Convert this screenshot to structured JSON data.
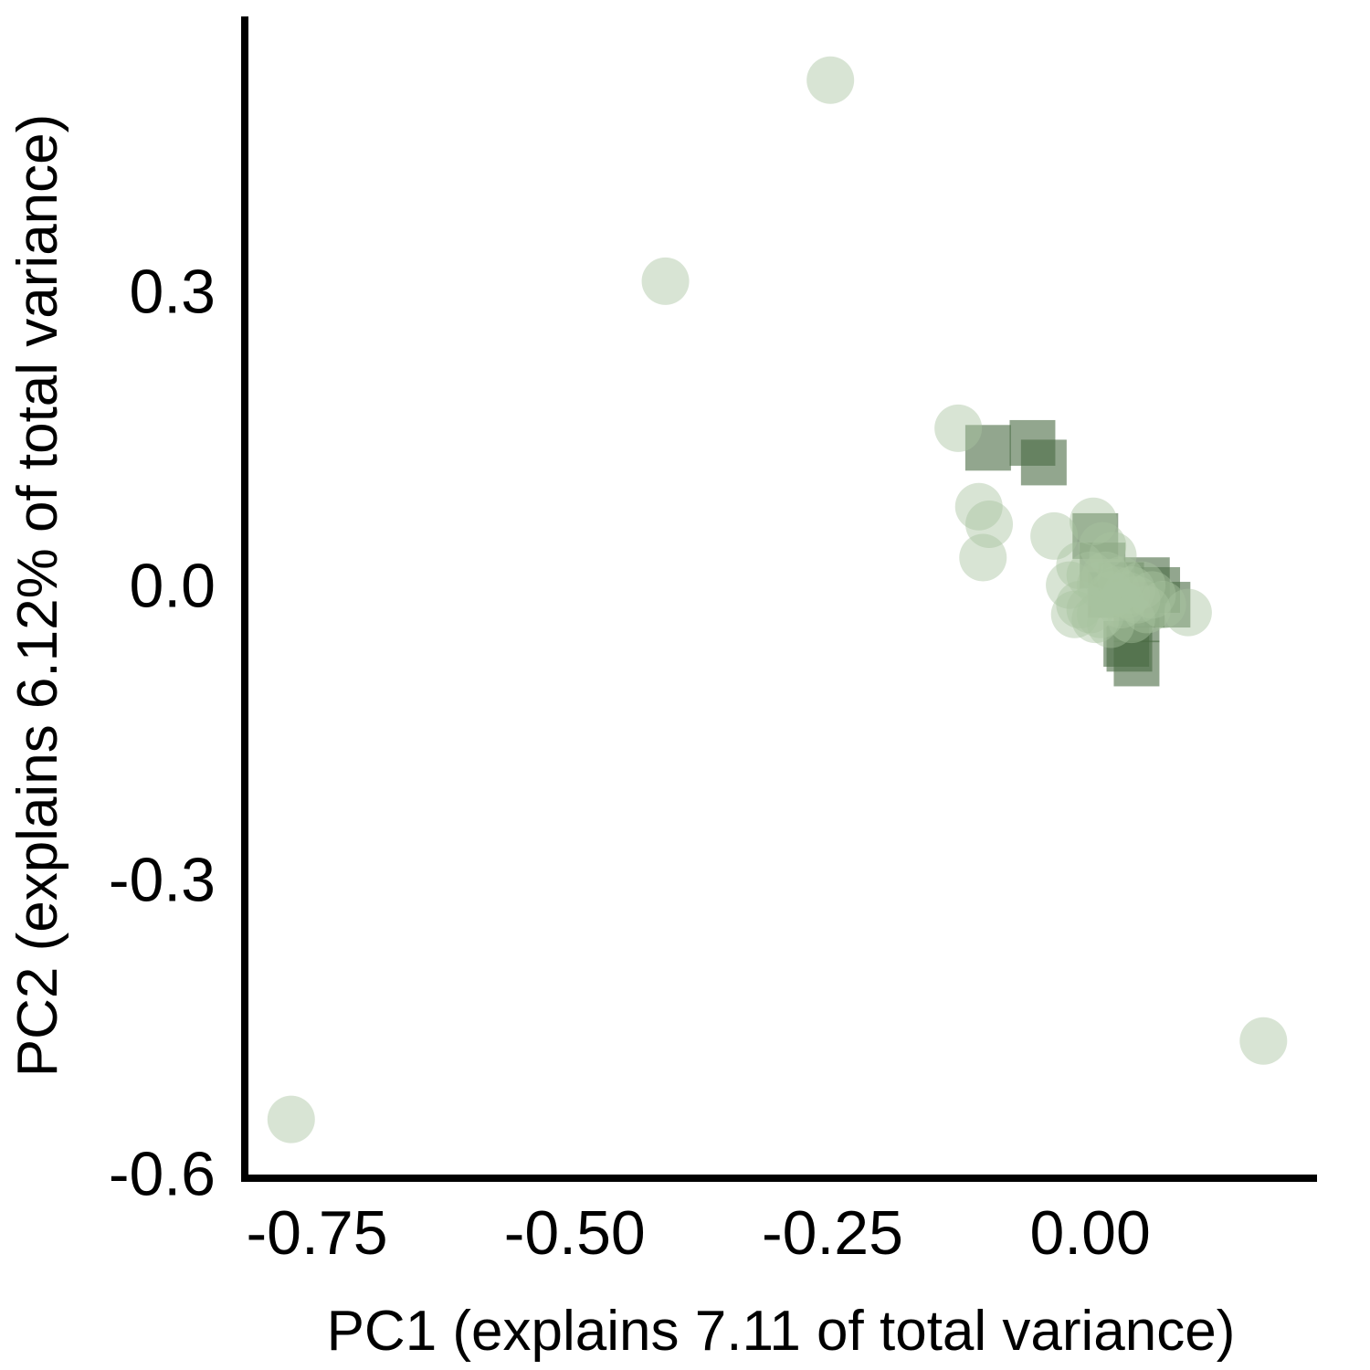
{
  "chart_data": {
    "type": "scatter",
    "xlabel": "PC1 (explains 7.11 of total variance)",
    "ylabel": "PC2 (explains 6.12% of total variance)",
    "xlim": [
      -0.82,
      0.22
    ],
    "ylim": [
      -0.605,
      0.58
    ],
    "x_ticks": [
      {
        "value": -0.75,
        "label": "-0.75"
      },
      {
        "value": -0.5,
        "label": "-0.50"
      },
      {
        "value": -0.25,
        "label": "-0.25"
      },
      {
        "value": 0.0,
        "label": "0.00"
      }
    ],
    "y_ticks": [
      {
        "value": 0.3,
        "label": "0.3"
      },
      {
        "value": 0.0,
        "label": "0.0"
      },
      {
        "value": -0.3,
        "label": "-0.3"
      },
      {
        "value": -0.6,
        "label": "-0.6"
      }
    ],
    "grid": false,
    "legend": "none",
    "series": [
      {
        "marker": "square",
        "color": "#4a6b43",
        "opacity": 0.6,
        "points": [
          [
            -0.099,
            0.14
          ],
          [
            -0.056,
            0.145
          ],
          [
            -0.045,
            0.125
          ],
          [
            0.005,
            0.05
          ],
          [
            0.012,
            0.02
          ],
          [
            0.055,
            0.005
          ],
          [
            0.065,
            -0.005
          ],
          [
            0.075,
            -0.02
          ],
          [
            0.045,
            -0.035
          ],
          [
            0.035,
            -0.06
          ],
          [
            0.038,
            -0.065
          ],
          [
            0.045,
            -0.08
          ],
          [
            0.02,
            -0.01
          ],
          [
            0.03,
            0.0
          ],
          [
            0.05,
            -0.02
          ]
        ]
      },
      {
        "marker": "circle",
        "color": "#a9c4a0",
        "opacity": 0.45,
        "points": [
          [
            -0.252,
            0.515
          ],
          [
            -0.412,
            0.31
          ],
          [
            -0.775,
            -0.545
          ],
          [
            0.168,
            -0.465
          ],
          [
            -0.128,
            0.16
          ],
          [
            -0.108,
            0.08
          ],
          [
            -0.098,
            0.062
          ],
          [
            -0.104,
            0.028
          ],
          [
            -0.035,
            0.05
          ],
          [
            0.003,
            0.065
          ],
          [
            0.012,
            0.04
          ],
          [
            0.022,
            0.03
          ],
          [
            -0.01,
            0.02
          ],
          [
            0.0,
            0.01
          ],
          [
            0.01,
            0.0
          ],
          [
            0.02,
            -0.01
          ],
          [
            0.03,
            0.005
          ],
          [
            0.04,
            -0.005
          ],
          [
            0.05,
            0.0
          ],
          [
            0.06,
            -0.01
          ],
          [
            0.07,
            -0.02
          ],
          [
            -0.02,
            0.0
          ],
          [
            -0.01,
            -0.02
          ],
          [
            0.0,
            -0.025
          ],
          [
            0.01,
            -0.03
          ],
          [
            0.03,
            -0.02
          ],
          [
            0.045,
            -0.015
          ],
          [
            0.055,
            -0.025
          ],
          [
            0.095,
            -0.028
          ],
          [
            -0.015,
            -0.03
          ],
          [
            0.005,
            -0.035
          ],
          [
            0.02,
            -0.04
          ],
          [
            0.04,
            -0.035
          ],
          [
            0.025,
            -0.005
          ],
          [
            0.035,
            -0.01
          ],
          [
            0.015,
            0.01
          ]
        ]
      }
    ]
  }
}
